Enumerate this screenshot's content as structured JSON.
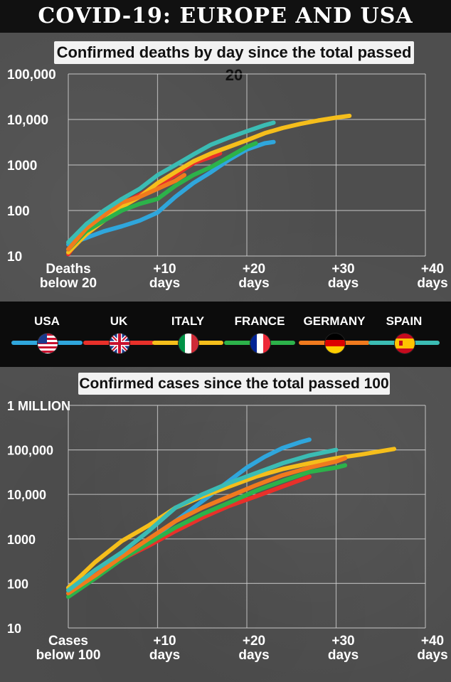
{
  "title": "COVID-19:  EUROPE AND USA",
  "legend": [
    {
      "name": "USA",
      "color": "#2fa6dc",
      "flag": "usa-flag-icon"
    },
    {
      "name": "UK",
      "color": "#e8302a",
      "flag": "uk-flag-icon"
    },
    {
      "name": "ITALY",
      "color": "#f5be1b",
      "flag": "italy-flag-icon"
    },
    {
      "name": "FRANCE",
      "color": "#2cb24a",
      "flag": "france-flag-icon"
    },
    {
      "name": "GERMANY",
      "color": "#f07a1e",
      "flag": "germany-flag-icon"
    },
    {
      "name": "SPAIN",
      "color": "#3bbcb4",
      "flag": "spain-flag-icon"
    }
  ],
  "chart_data": [
    {
      "type": "line",
      "title": "Confirmed deaths by day since the total passed 20",
      "yscale": "log",
      "ylim": [
        10,
        100000
      ],
      "xlim": [
        0,
        40
      ],
      "yticks": [
        10,
        100,
        1000,
        10000,
        100000
      ],
      "ytick_labels": [
        "10",
        "100",
        "1000",
        "10,000",
        "100,000"
      ],
      "xticks": [
        0,
        10,
        20,
        30,
        40
      ],
      "xtick_labels": [
        [
          "Deaths",
          "below 20"
        ],
        [
          "+10",
          "days"
        ],
        [
          "+20",
          "days"
        ],
        [
          "+30",
          "days"
        ],
        [
          "+40",
          "days"
        ]
      ],
      "grid": true,
      "series": [
        {
          "name": "USA",
          "x": [
            0,
            2,
            4,
            6,
            8,
            10,
            12,
            14,
            16,
            18,
            20,
            22,
            23
          ],
          "y": [
            18,
            25,
            35,
            45,
            60,
            90,
            200,
            400,
            700,
            1300,
            2200,
            3000,
            3200
          ]
        },
        {
          "name": "UK",
          "x": [
            0,
            2,
            4,
            6,
            8,
            10,
            12,
            14,
            16,
            17
          ],
          "y": [
            11,
            40,
            80,
            140,
            220,
            350,
            600,
            1100,
            1500,
            1800
          ]
        },
        {
          "name": "ITALY",
          "x": [
            0,
            2,
            4,
            6,
            8,
            10,
            12,
            14,
            16,
            18,
            20,
            22,
            24,
            26,
            28,
            30,
            31.5
          ],
          "y": [
            12,
            30,
            60,
            120,
            200,
            400,
            700,
            1200,
            1800,
            2500,
            3500,
            5000,
            6500,
            8000,
            9500,
            11000,
            12000
          ]
        },
        {
          "name": "FRANCE",
          "x": [
            0,
            2,
            4,
            6,
            8,
            10,
            12,
            14,
            16,
            18,
            20,
            21
          ],
          "y": [
            14,
            35,
            60,
            100,
            140,
            180,
            350,
            600,
            900,
            1500,
            2500,
            3000
          ]
        },
        {
          "name": "GERMANY",
          "x": [
            0,
            2,
            4,
            6,
            8,
            10,
            12,
            13
          ],
          "y": [
            14,
            40,
            80,
            150,
            200,
            300,
            450,
            600
          ]
        },
        {
          "name": "SPAIN",
          "x": [
            0,
            2,
            4,
            6,
            8,
            10,
            12,
            14,
            16,
            18,
            20,
            22,
            23
          ],
          "y": [
            20,
            50,
            100,
            180,
            300,
            600,
            1000,
            1700,
            2800,
            4000,
            5500,
            7500,
            8500
          ]
        }
      ]
    },
    {
      "type": "line",
      "title": "Confirmed cases since the total passed 100",
      "yscale": "log",
      "ylim": [
        10,
        1000000
      ],
      "xlim": [
        0,
        40
      ],
      "yticks": [
        10,
        100,
        1000,
        10000,
        100000,
        1000000
      ],
      "ytick_labels": [
        "10",
        "100",
        "1000",
        "10,000",
        "100,000",
        "1 MILLION"
      ],
      "xticks": [
        0,
        10,
        20,
        30,
        40
      ],
      "xtick_labels": [
        [
          "Cases",
          "below 100"
        ],
        [
          "+10",
          "days"
        ],
        [
          "+20",
          "days"
        ],
        [
          "+30",
          "days"
        ],
        [
          "+40",
          "days"
        ]
      ],
      "grid": true,
      "series": [
        {
          "name": "USA",
          "x": [
            0,
            3,
            6,
            9,
            12,
            15,
            18,
            20,
            22,
            24,
            26,
            27
          ],
          "y": [
            70,
            150,
            350,
            900,
            2500,
            7000,
            20000,
            40000,
            70000,
            110000,
            150000,
            170000
          ]
        },
        {
          "name": "UK",
          "x": [
            0,
            3,
            6,
            9,
            12,
            15,
            18,
            21,
            24,
            27
          ],
          "y": [
            80,
            170,
            350,
            700,
            1500,
            3000,
            5500,
            9000,
            15000,
            25000
          ]
        },
        {
          "name": "ITALY",
          "x": [
            0,
            3,
            6,
            9,
            12,
            15,
            18,
            21,
            24,
            27,
            30,
            33,
            36.5
          ],
          "y": [
            80,
            300,
            900,
            2000,
            5000,
            9000,
            15000,
            25000,
            37000,
            50000,
            65000,
            80000,
            105000
          ]
        },
        {
          "name": "FRANCE",
          "x": [
            0,
            3,
            6,
            9,
            12,
            15,
            18,
            21,
            24,
            27,
            30,
            31
          ],
          "y": [
            50,
            130,
            350,
            800,
            1800,
            3600,
            6500,
            12000,
            20000,
            32000,
            40000,
            45000
          ]
        },
        {
          "name": "GERMANY",
          "x": [
            0,
            3,
            6,
            9,
            12,
            15,
            18,
            21,
            24,
            27,
            30,
            31
          ],
          "y": [
            60,
            150,
            400,
            1000,
            2500,
            5000,
            9000,
            16000,
            27000,
            40000,
            55000,
            65000
          ]
        },
        {
          "name": "SPAIN",
          "x": [
            0,
            3,
            6,
            9,
            12,
            15,
            18,
            21,
            24,
            27,
            30
          ],
          "y": [
            70,
            200,
            500,
            1500,
            5000,
            10000,
            18000,
            30000,
            50000,
            75000,
            100000
          ]
        }
      ]
    }
  ]
}
